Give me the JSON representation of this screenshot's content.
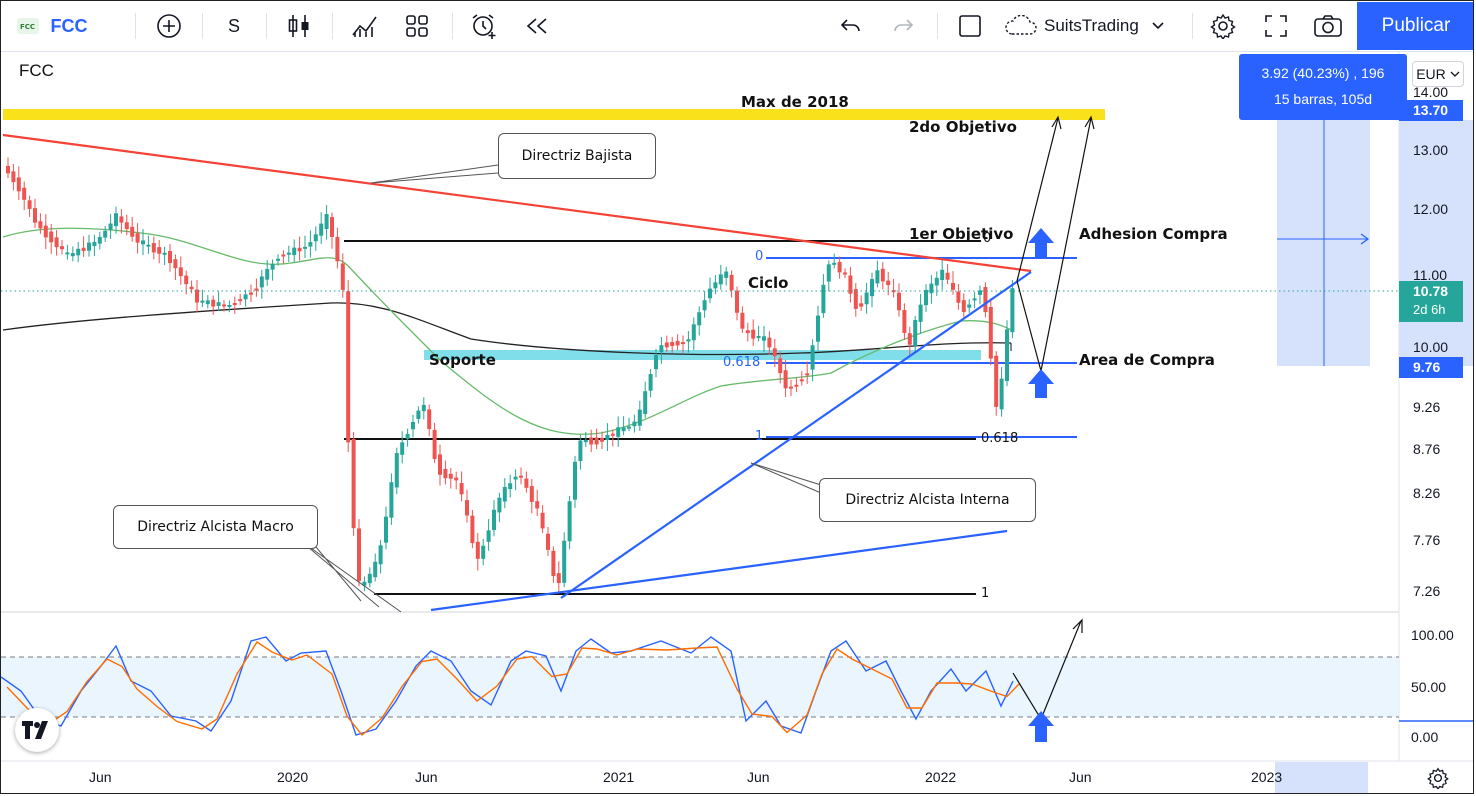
{
  "toolbar": {
    "symbol": "FCC",
    "interval": "S",
    "account": "SuitsTrading",
    "publish_label": "Publicar"
  },
  "chart": {
    "legend_symbol": "FCC",
    "currency": "EUR",
    "measure": {
      "line1": "3.92 (40.23%) , 196",
      "line2": "15 barras, 105d"
    },
    "price_axis": [
      "14.00",
      "13.00",
      "12.00",
      "11.00",
      "10.00",
      "9.26",
      "8.76",
      "8.26",
      "7.76",
      "7.26"
    ],
    "price_badges": {
      "top": "13.70",
      "last": "10.78",
      "countdown": "2d 6h",
      "low": "9.76"
    },
    "oscillator_axis": [
      "100.00",
      "50.00",
      "0.00"
    ],
    "date_axis": [
      "Jun",
      "2020",
      "Jun",
      "2021",
      "Jun",
      "2022",
      "Jun",
      "2023"
    ],
    "annotations": {
      "max_2018": "Max de 2018",
      "second_target": "2do Objetivo",
      "first_target": "1er Objetivo",
      "buy_adhesion": "Adhesion Compra",
      "buy_area": "Area de Compra",
      "support": "Soporte",
      "cycle": "Ciclo",
      "directriz_bajista": "Directriz Bajista",
      "directriz_alcista_interna": "Directriz Alcista Interna",
      "directriz_alcista_macro": "Directriz Alcista Macro"
    },
    "fib_labels": {
      "black_0": "0",
      "black_0618": "0.618",
      "black_1": "1",
      "blue_0": "0",
      "blue_0618": "0.618",
      "blue_1": "1"
    },
    "colors": {
      "accent": "#2962ff",
      "max_band": "#f9e21b",
      "support_band": "#80deea",
      "downtrend": "#f44336",
      "uptrend": "#2962ff",
      "bull_candle": "#26a69a",
      "bear_candle": "#ef5350",
      "last_price": "#26a69a"
    }
  }
}
